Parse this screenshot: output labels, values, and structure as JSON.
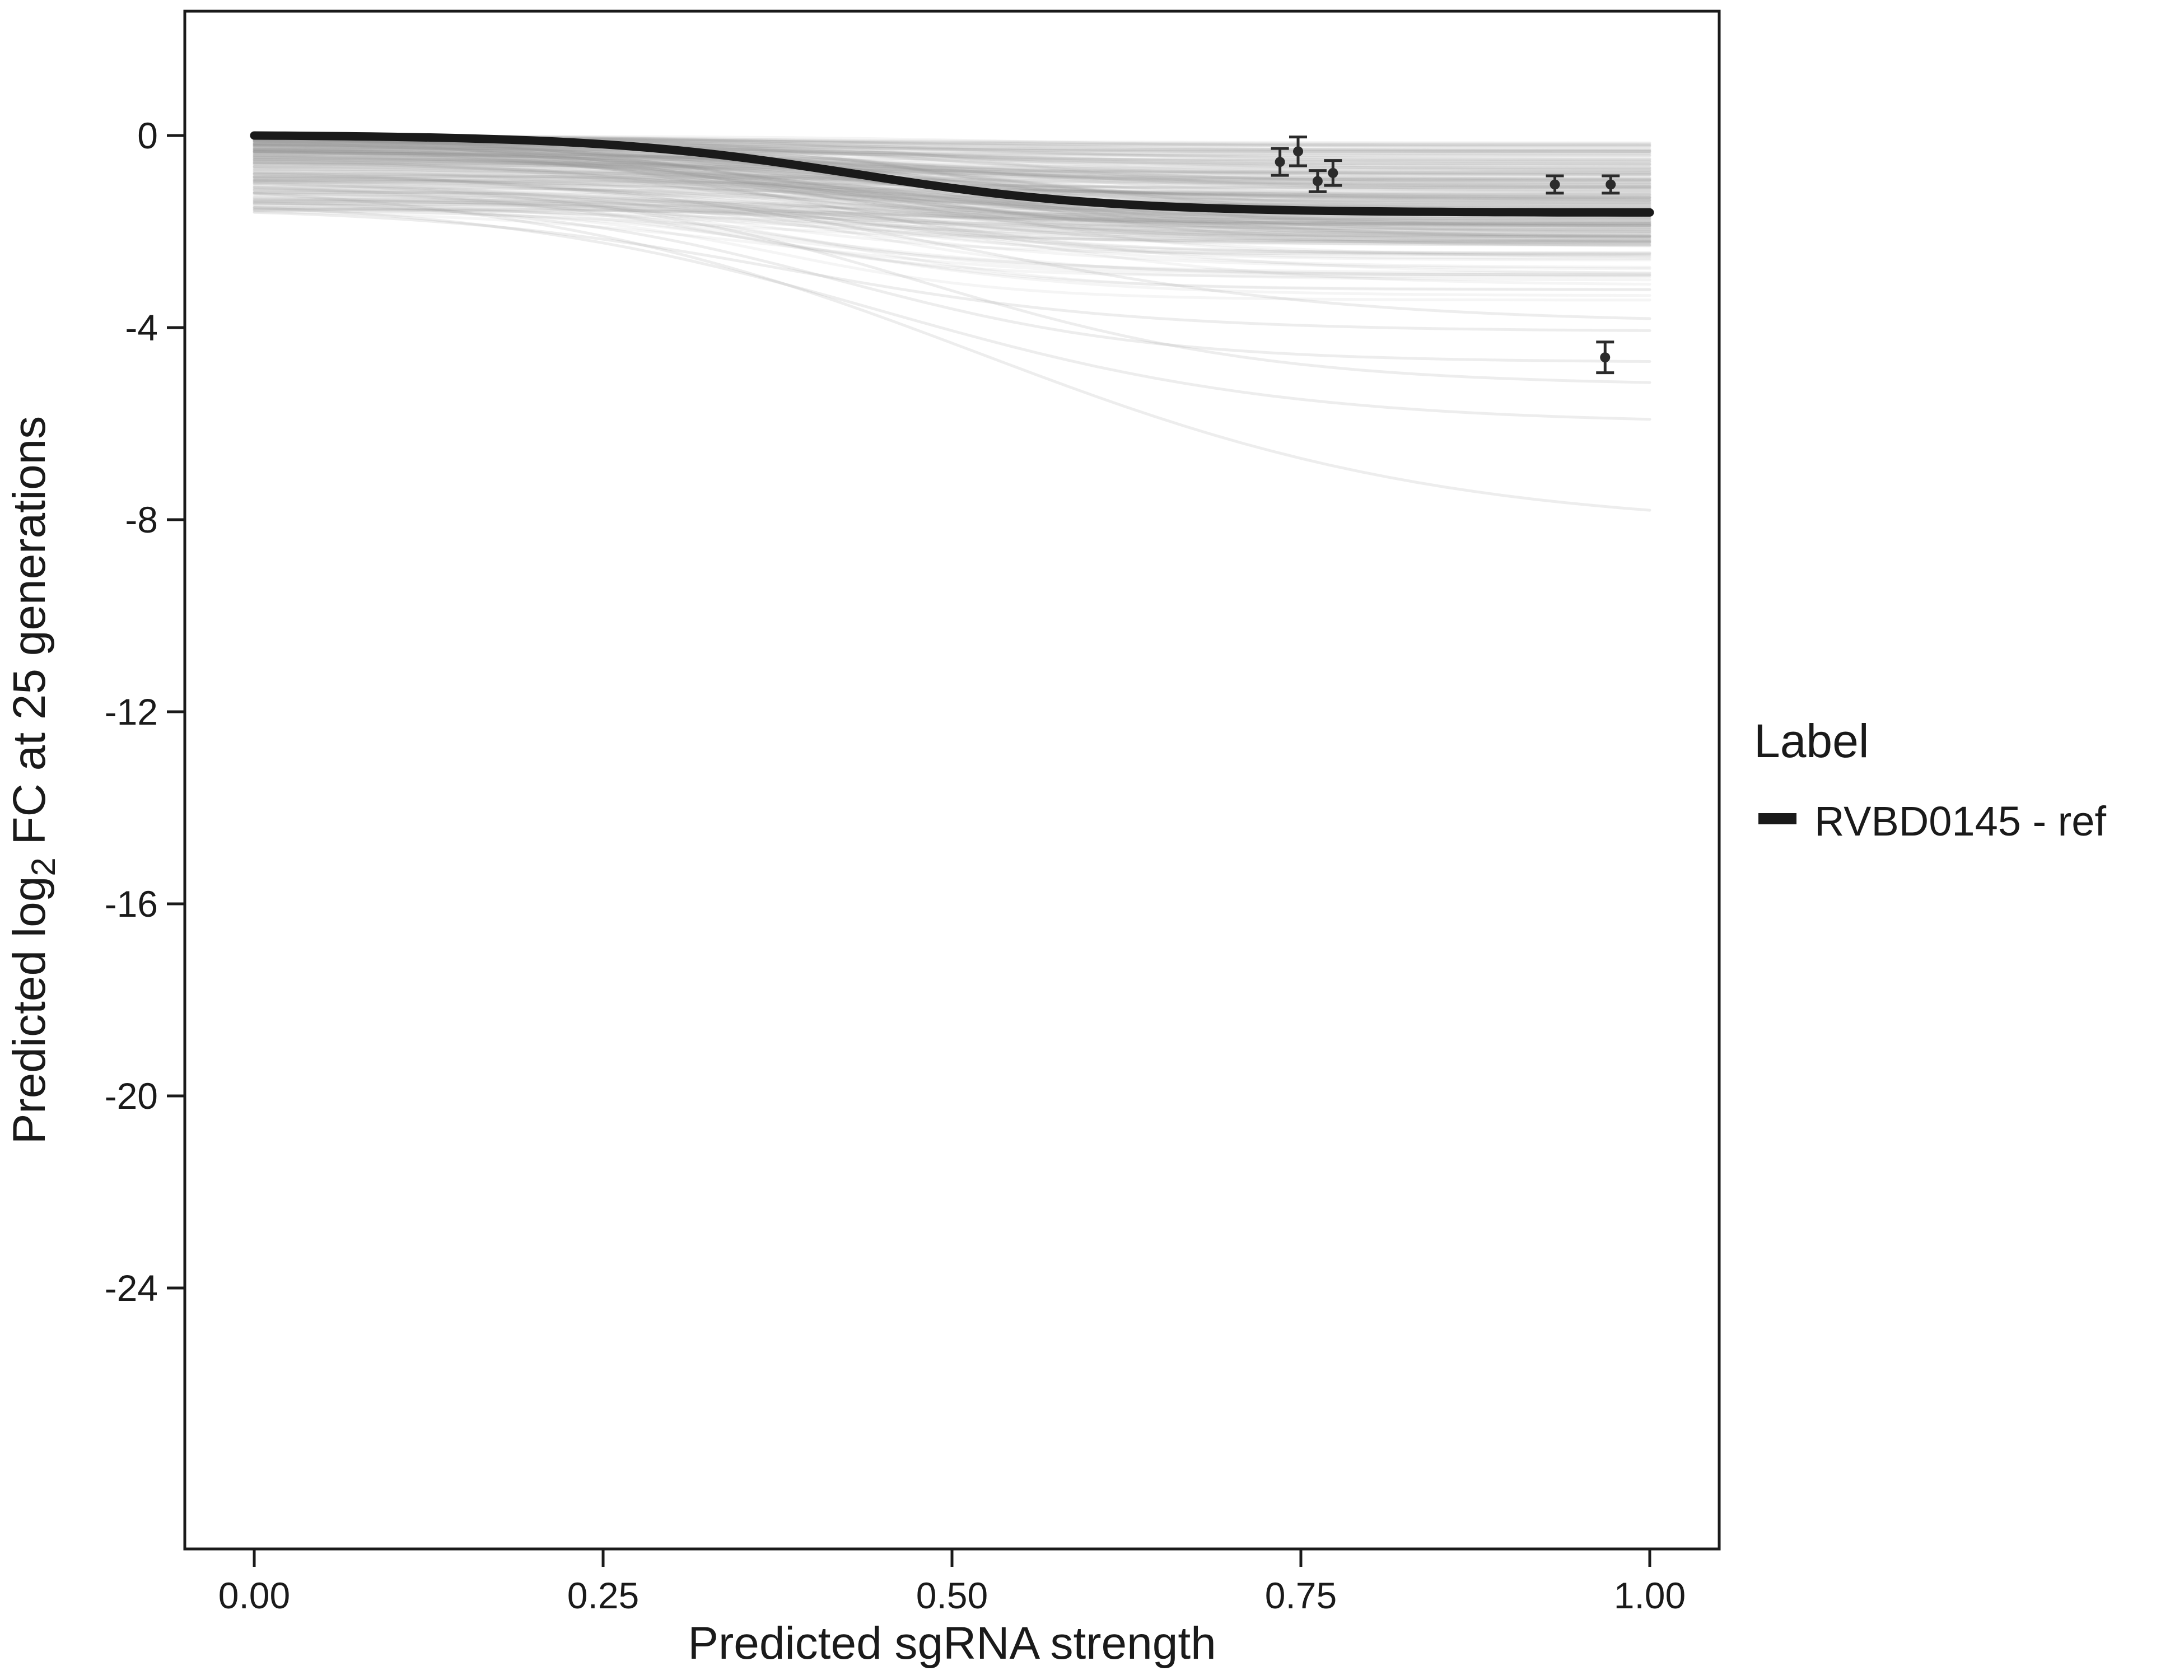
{
  "figure": {
    "background": "#ffffff"
  },
  "chart_data": {
    "type": "line",
    "title": "",
    "xlabel": "Predicted sgRNA strength",
    "ylabel": "Predicted log2 FC at 25 generations",
    "ylabel_parts": {
      "prefix": "Predicted  log",
      "sub": "2",
      "suffix": " FC at 25 generations"
    },
    "xlim": [
      0,
      1
    ],
    "ylim": [
      -29.4,
      2.6
    ],
    "grid": "off",
    "x_ticks": {
      "values": [
        0,
        0.25,
        0.5,
        0.75,
        1.0
      ],
      "labels": [
        "0.00",
        "0.25",
        "0.50",
        "0.75",
        "1.00"
      ]
    },
    "y_ticks": {
      "values": [
        0,
        -4,
        -8,
        -12,
        -16,
        -20,
        -24
      ],
      "labels": [
        "0",
        "-4",
        "-8",
        "-12",
        "-16",
        "-20",
        "-24"
      ]
    },
    "legend": {
      "title": "Label",
      "position": "right",
      "entries": [
        {
          "label": "RVBD0145 - ref",
          "color": "#1a1a1a",
          "key": "thick-line"
        }
      ]
    },
    "reference_curve": {
      "name": "RVBD0145 - ref",
      "color": "#1a1a1a",
      "model": {
        "type": "sigmoid",
        "start": 0.0,
        "drop": 1.62,
        "midpoint": 0.43,
        "steepness": 11
      },
      "points": [
        [
          0.0,
          -0.01
        ],
        [
          0.05,
          -0.02
        ],
        [
          0.1,
          -0.04
        ],
        [
          0.15,
          -0.07
        ],
        [
          0.2,
          -0.12
        ],
        [
          0.25,
          -0.2
        ],
        [
          0.3,
          -0.31
        ],
        [
          0.35,
          -0.48
        ],
        [
          0.4,
          -0.68
        ],
        [
          0.45,
          -0.9
        ],
        [
          0.5,
          -1.11
        ],
        [
          0.55,
          -1.28
        ],
        [
          0.6,
          -1.4
        ],
        [
          0.65,
          -1.49
        ],
        [
          0.7,
          -1.54
        ],
        [
          0.75,
          -1.57
        ],
        [
          0.8,
          -1.59
        ],
        [
          0.85,
          -1.6
        ],
        [
          0.9,
          -1.61
        ],
        [
          0.95,
          -1.61
        ],
        [
          1.0,
          -1.61
        ]
      ]
    },
    "measurements": {
      "color": "#2b2b2b",
      "points": [
        {
          "x": 0.735,
          "y": -0.55,
          "err": 0.28
        },
        {
          "x": 0.748,
          "y": -0.33,
          "err": 0.3
        },
        {
          "x": 0.762,
          "y": -0.95,
          "err": 0.22
        },
        {
          "x": 0.773,
          "y": -0.78,
          "err": 0.26
        },
        {
          "x": 0.932,
          "y": -1.02,
          "err": 0.18
        },
        {
          "x": 0.972,
          "y": -1.02,
          "err": 0.18
        },
        {
          "x": 0.968,
          "y": -4.62,
          "err": 0.32
        }
      ]
    },
    "ensemble": {
      "description": "Background sigmoid dose-response fits (all other sgRNA series), light gray",
      "count": 260,
      "seed": 11,
      "color": "#8c8c8c",
      "opacity": 0.09,
      "outlier_opacity": 0.16,
      "start_offset_range": [
        0.0,
        1.6
      ],
      "drop_range": [
        0.1,
        2.0
      ],
      "midpoint_range": [
        0.3,
        0.55
      ],
      "steepness_range": [
        7,
        13
      ],
      "outliers": [
        {
          "start": 1.2,
          "drop": 7.3,
          "midpoint": 0.52,
          "steepness": 6
        },
        {
          "start": 1.5,
          "drop": 4.7,
          "midpoint": 0.45,
          "steepness": 7
        },
        {
          "start": 1.0,
          "drop": 4.3,
          "midpoint": 0.48,
          "steepness": 8
        },
        {
          "start": 1.4,
          "drop": 3.4,
          "midpoint": 0.42,
          "steepness": 9
        },
        {
          "start": 0.8,
          "drop": 3.2,
          "midpoint": 0.5,
          "steepness": 7
        },
        {
          "start": 1.6,
          "drop": 2.6,
          "midpoint": 0.38,
          "steepness": 8
        }
      ]
    }
  }
}
